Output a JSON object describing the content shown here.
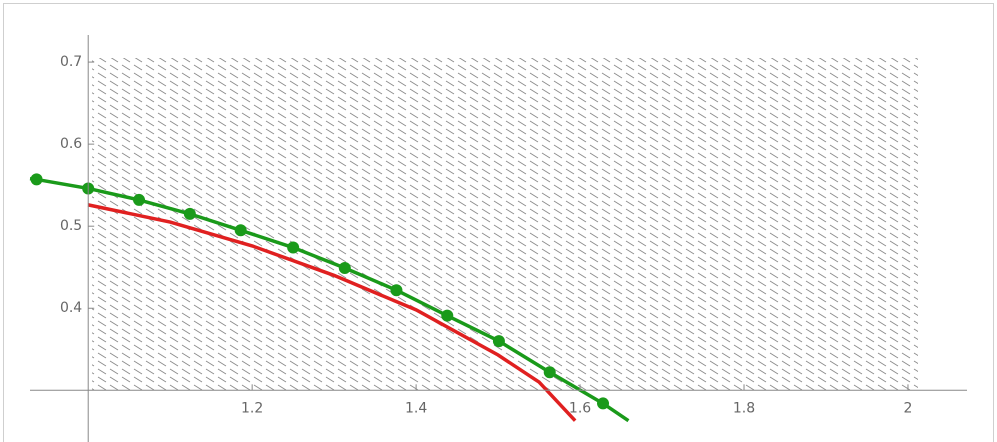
{
  "chart_data": {
    "type": "line",
    "xlim": [
      0.929,
      2.072
    ],
    "ylim": [
      0.237,
      0.733
    ],
    "axes_origin": [
      1.0,
      0.3
    ],
    "xticks": [
      1.2,
      1.4,
      1.6,
      1.8,
      2.0
    ],
    "yticks": [
      0.4,
      0.5,
      0.6,
      0.7
    ],
    "series": [
      {
        "color": "#1a9a1a",
        "markers": true,
        "x": [
          0.937,
          1.0,
          1.062,
          1.124,
          1.186,
          1.25,
          1.313,
          1.376,
          1.438,
          1.501,
          1.563,
          1.628
        ],
        "values": [
          0.557,
          0.546,
          0.532,
          0.515,
          0.495,
          0.474,
          0.449,
          0.422,
          0.391,
          0.36,
          0.322,
          0.284
        ],
        "line_x": [
          0.929,
          0.937,
          1.0,
          1.062,
          1.124,
          1.186,
          1.25,
          1.313,
          1.376,
          1.438,
          1.501,
          1.563,
          1.628,
          1.659
        ],
        "line_values": [
          0.558,
          0.557,
          0.546,
          0.532,
          0.515,
          0.495,
          0.474,
          0.449,
          0.422,
          0.391,
          0.36,
          0.322,
          0.284,
          0.263
        ]
      },
      {
        "color": "#e02020",
        "markers": false,
        "x": [
          1.0,
          1.1,
          1.2,
          1.3,
          1.4,
          1.5,
          1.55,
          1.594
        ],
        "values": [
          0.526,
          0.505,
          0.476,
          0.44,
          0.398,
          0.343,
          0.31,
          0.263
        ]
      }
    ]
  }
}
